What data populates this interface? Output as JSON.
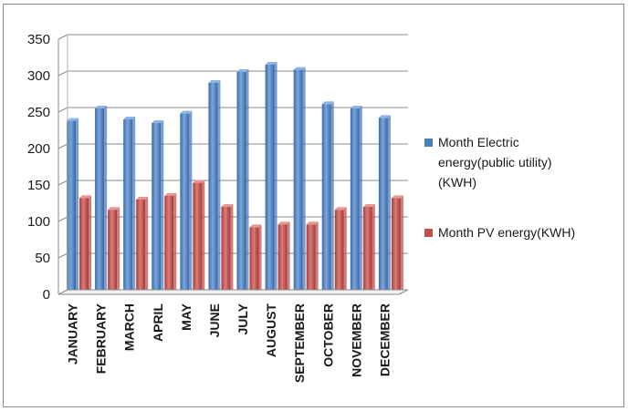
{
  "chart_data": {
    "type": "bar",
    "title": "",
    "xlabel": "",
    "ylabel": "",
    "ylim": [
      0,
      350
    ],
    "yticks": [
      0,
      50,
      100,
      150,
      200,
      250,
      300,
      350
    ],
    "grid": true,
    "legend_position": "right",
    "categories": [
      "JANUARY",
      "FEBRUARY",
      "MARCH",
      "APRIL",
      "MAY",
      "JUNE",
      "JULY",
      "AUGUST",
      "SEPTEMBER",
      "OCTOBER",
      "NOVEMBER",
      "DECEMBER"
    ],
    "series": [
      {
        "name": "Month  Electric energy(public utility) (KWH)",
        "legend_lines": [
          "Month  Electric",
          "energy(public utility)",
          "(KWH)"
        ],
        "color": "#4a7ebb",
        "values": [
          238,
          255,
          240,
          235,
          248,
          290,
          305,
          315,
          308,
          261,
          255,
          242
        ]
      },
      {
        "name": "Month  PV energy(KWH)",
        "legend_lines": [
          "Month  PV energy(KWH)"
        ],
        "color": "#c0504d",
        "values": [
          132,
          116,
          130,
          135,
          153,
          120,
          92,
          96,
          96,
          116,
          120,
          132
        ]
      }
    ]
  }
}
